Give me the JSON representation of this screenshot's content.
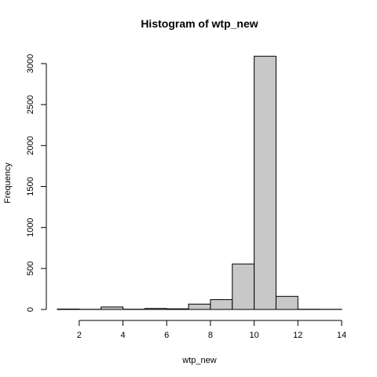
{
  "chart_data": {
    "type": "bar",
    "title": "Histogram of wtp_new",
    "xlabel": "wtp_new",
    "ylabel": "Frequency",
    "bins": [
      {
        "start": 1,
        "end": 2,
        "count": 5
      },
      {
        "start": 2,
        "end": 3,
        "count": 2
      },
      {
        "start": 3,
        "end": 4,
        "count": 30
      },
      {
        "start": 4,
        "end": 5,
        "count": 3
      },
      {
        "start": 5,
        "end": 6,
        "count": 12
      },
      {
        "start": 6,
        "end": 7,
        "count": 8
      },
      {
        "start": 7,
        "end": 8,
        "count": 65
      },
      {
        "start": 8,
        "end": 9,
        "count": 120
      },
      {
        "start": 9,
        "end": 10,
        "count": 555
      },
      {
        "start": 10,
        "end": 11,
        "count": 3090
      },
      {
        "start": 11,
        "end": 12,
        "count": 160
      },
      {
        "start": 12,
        "end": 13,
        "count": 3
      },
      {
        "start": 13,
        "end": 14,
        "count": 2
      }
    ],
    "xlim": [
      1,
      14
    ],
    "ylim": [
      0,
      3000
    ],
    "xticks": [
      2,
      4,
      6,
      8,
      10,
      12,
      14
    ],
    "yticks": [
      0,
      500,
      1000,
      1500,
      2000,
      2500,
      3000
    ],
    "grid": false,
    "bar_fill": "#c8c8c8",
    "bar_stroke": "#000000"
  }
}
